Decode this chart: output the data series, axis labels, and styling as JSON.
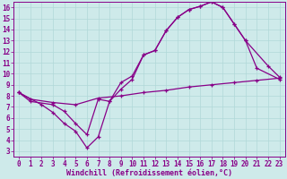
{
  "xlabel": "Windchill (Refroidissement éolien,°C)",
  "bg_color": "#ceeaea",
  "grid_color": "#b0d8d8",
  "line_color": "#880088",
  "xlim": [
    -0.5,
    23.5
  ],
  "ylim": [
    2.5,
    16.5
  ],
  "xticks": [
    0,
    1,
    2,
    3,
    4,
    5,
    6,
    7,
    8,
    9,
    10,
    11,
    12,
    13,
    14,
    15,
    16,
    17,
    18,
    19,
    20,
    21,
    22,
    23
  ],
  "yticks": [
    3,
    4,
    5,
    6,
    7,
    8,
    9,
    10,
    11,
    12,
    13,
    14,
    15,
    16
  ],
  "line1_x": [
    0,
    1,
    3,
    4,
    5,
    6,
    7,
    8,
    9,
    10,
    11,
    12,
    13,
    14,
    15,
    16,
    17,
    18,
    19,
    20,
    21,
    23
  ],
  "line1_y": [
    8.3,
    7.5,
    7.2,
    6.6,
    5.5,
    4.5,
    7.7,
    7.5,
    8.6,
    9.5,
    11.7,
    12.1,
    13.9,
    15.1,
    15.8,
    16.1,
    16.5,
    16.0,
    14.5,
    13.0,
    10.5,
    9.5
  ],
  "line2_x": [
    0,
    2,
    3,
    4,
    5,
    6,
    7,
    8,
    9,
    10,
    11,
    12,
    13,
    14,
    15,
    16,
    17,
    18,
    19,
    20,
    22,
    23
  ],
  "line2_y": [
    8.3,
    7.2,
    6.5,
    5.5,
    4.8,
    3.3,
    4.3,
    7.5,
    9.2,
    9.8,
    11.7,
    12.1,
    13.9,
    15.1,
    15.8,
    16.1,
    16.5,
    16.0,
    14.5,
    13.0,
    10.7,
    9.7
  ],
  "line3_x": [
    0,
    1,
    3,
    5,
    7,
    9,
    11,
    13,
    15,
    17,
    19,
    21,
    23
  ],
  "line3_y": [
    8.3,
    7.7,
    7.4,
    7.2,
    7.8,
    8.0,
    8.3,
    8.5,
    8.8,
    9.0,
    9.2,
    9.4,
    9.6
  ],
  "tick_fontsize": 5.5,
  "xlabel_fontsize": 6.0
}
